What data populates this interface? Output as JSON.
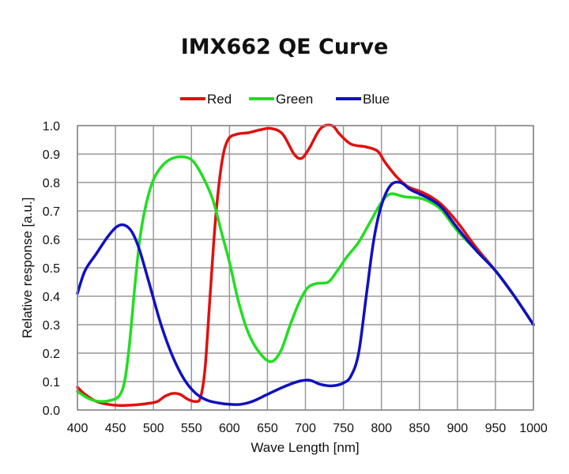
{
  "chart_data": {
    "type": "line",
    "title": "IMX662 QE Curve",
    "xlabel": "Wave Length [nm]",
    "ylabel": "Relative response [a.u.]",
    "xlim": [
      400,
      1000
    ],
    "ylim": [
      0,
      1.0
    ],
    "xticks": [
      "400",
      "450",
      "500",
      "550",
      "600",
      "650",
      "700",
      "750",
      "800",
      "850",
      "900",
      "950",
      "1000"
    ],
    "yticks": [
      "0.0",
      "0.1",
      "0.2",
      "0.3",
      "0.4",
      "0.5",
      "0.6",
      "0.7",
      "0.8",
      "0.9",
      "1.0"
    ],
    "grid": true,
    "legend": "top-center",
    "series": [
      {
        "name": "Red",
        "color": "#e01010",
        "x": [
          400,
          410,
          425,
          440,
          455,
          470,
          490,
          505,
          515,
          525,
          535,
          545,
          555,
          562,
          568,
          575,
          582,
          590,
          598,
          610,
          625,
          640,
          655,
          670,
          685,
          695,
          705,
          720,
          735,
          745,
          760,
          780,
          795,
          805,
          820,
          835,
          850,
          865,
          880,
          900,
          925,
          950,
          975,
          1000
        ],
        "y": [
          0.08,
          0.055,
          0.03,
          0.02,
          0.016,
          0.017,
          0.022,
          0.03,
          0.048,
          0.058,
          0.055,
          0.038,
          0.03,
          0.045,
          0.15,
          0.42,
          0.68,
          0.87,
          0.95,
          0.97,
          0.975,
          0.985,
          0.99,
          0.97,
          0.9,
          0.885,
          0.92,
          0.99,
          1.0,
          0.97,
          0.935,
          0.925,
          0.91,
          0.87,
          0.82,
          0.785,
          0.77,
          0.75,
          0.72,
          0.66,
          0.57,
          0.49,
          0.4,
          0.3
        ]
      },
      {
        "name": "Green",
        "color": "#22dd22",
        "x": [
          400,
          415,
          430,
          445,
          455,
          462,
          468,
          475,
          482,
          490,
          500,
          512,
          525,
          540,
          552,
          565,
          578,
          590,
          600,
          612,
          625,
          640,
          655,
          668,
          680,
          692,
          703,
          715,
          730,
          742,
          755,
          770,
          785,
          800,
          812,
          830,
          850,
          865,
          880,
          900,
          925,
          950,
          975,
          1000
        ],
        "y": [
          0.065,
          0.04,
          0.03,
          0.035,
          0.05,
          0.1,
          0.22,
          0.42,
          0.6,
          0.72,
          0.81,
          0.86,
          0.885,
          0.89,
          0.875,
          0.82,
          0.74,
          0.62,
          0.52,
          0.38,
          0.27,
          0.2,
          0.17,
          0.21,
          0.3,
          0.38,
          0.43,
          0.445,
          0.45,
          0.49,
          0.54,
          0.59,
          0.66,
          0.73,
          0.76,
          0.75,
          0.745,
          0.73,
          0.7,
          0.63,
          0.56,
          0.49,
          0.4,
          0.3
        ]
      },
      {
        "name": "Blue",
        "color": "#1010c0",
        "x": [
          400,
          410,
          425,
          440,
          452,
          462,
          472,
          482,
          495,
          510,
          525,
          540,
          555,
          570,
          585,
          600,
          615,
          630,
          650,
          670,
          690,
          705,
          720,
          735,
          750,
          760,
          770,
          780,
          790,
          800,
          812,
          825,
          838,
          850,
          865,
          880,
          900,
          925,
          950,
          975,
          1000
        ],
        "y": [
          0.41,
          0.49,
          0.55,
          0.61,
          0.645,
          0.65,
          0.625,
          0.56,
          0.44,
          0.3,
          0.19,
          0.11,
          0.06,
          0.035,
          0.025,
          0.02,
          0.02,
          0.03,
          0.055,
          0.08,
          0.1,
          0.105,
          0.09,
          0.085,
          0.095,
          0.12,
          0.2,
          0.4,
          0.6,
          0.72,
          0.79,
          0.8,
          0.775,
          0.76,
          0.74,
          0.71,
          0.64,
          0.56,
          0.49,
          0.4,
          0.3
        ]
      }
    ]
  }
}
